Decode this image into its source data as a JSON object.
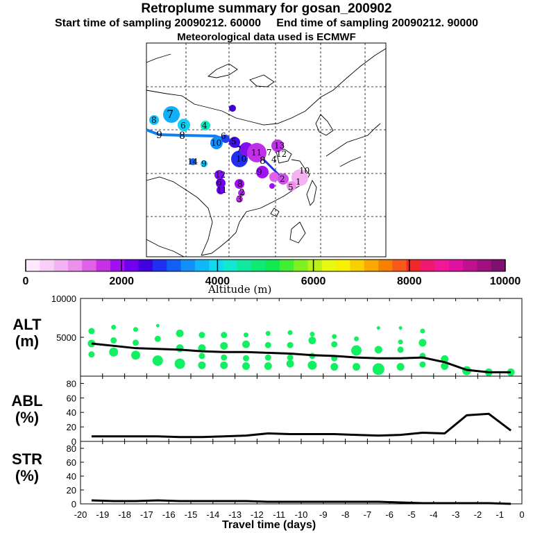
{
  "header": {
    "title": "Retroplume summary for gosan_200902",
    "subtitle_start": "Start time of sampling 20090212. 60000",
    "subtitle_end": "End time of sampling 20090212. 90000",
    "subtitle_met": "Meteorological data used is ECMWF"
  },
  "colorbar": {
    "label": "Altitude (m)",
    "ticks": [
      "0",
      "2000",
      "4000",
      "6000",
      "8000",
      "10000"
    ],
    "colors": [
      "#fde8fd",
      "#f8cff8",
      "#f3b3f3",
      "#ec90ec",
      "#e060e8",
      "#c830e8",
      "#a010f0",
      "#7000ee",
      "#4000e0",
      "#2030f0",
      "#1060f8",
      "#1090f8",
      "#10b8f8",
      "#10d8f0",
      "#10e8d0",
      "#10e8a0",
      "#10e878",
      "#10e850",
      "#40f030",
      "#80f020",
      "#b8f018",
      "#e8f810",
      "#f8f000",
      "#f8d000",
      "#f8a800",
      "#f88000",
      "#f85818",
      "#f02828",
      "#f01870",
      "#f01898",
      "#e010a0",
      "#c01090",
      "#a01080",
      "#801070"
    ]
  },
  "map": {
    "trajectory_labels": [
      "1",
      "2",
      "3",
      "4",
      "5",
      "6",
      "7",
      "8",
      "9",
      "10",
      "11",
      "12",
      "13",
      "14"
    ]
  },
  "chart_data": [
    {
      "type": "scatter",
      "name": "ALT",
      "ylabel": "ALT (m)",
      "ylim": [
        0,
        10000
      ],
      "yticks": [
        5000,
        10000
      ],
      "x": [
        -19.5,
        -18.5,
        -17.5,
        -16.5,
        -15.5,
        -14.5,
        -13.5,
        -12.5,
        -11.5,
        -10.5,
        -9.5,
        -8.5,
        -7.5,
        -6.5,
        -5.5,
        -4.5,
        -3.5,
        -2.5,
        -1.5,
        -0.5
      ],
      "median_line": [
        4200,
        3900,
        3600,
        3500,
        3400,
        3200,
        3100,
        3100,
        3000,
        2900,
        2700,
        2600,
        2400,
        2300,
        2300,
        2400,
        1800,
        800,
        500,
        500
      ],
      "points": [
        {
          "x": -19.5,
          "y": 5800,
          "size": 3
        },
        {
          "x": -19.5,
          "y": 4200,
          "size": 4
        },
        {
          "x": -19.5,
          "y": 2800,
          "size": 3
        },
        {
          "x": -18.5,
          "y": 6300,
          "size": 2
        },
        {
          "x": -18.5,
          "y": 4600,
          "size": 3
        },
        {
          "x": -18.5,
          "y": 3100,
          "size": 5
        },
        {
          "x": -17.5,
          "y": 6000,
          "size": 2
        },
        {
          "x": -17.5,
          "y": 4300,
          "size": 3
        },
        {
          "x": -17.5,
          "y": 2700,
          "size": 5
        },
        {
          "x": -16.5,
          "y": 6500,
          "size": 1
        },
        {
          "x": -16.5,
          "y": 4800,
          "size": 3
        },
        {
          "x": -16.5,
          "y": 2000,
          "size": 6
        },
        {
          "x": -15.5,
          "y": 5500,
          "size": 4
        },
        {
          "x": -15.5,
          "y": 3600,
          "size": 4
        },
        {
          "x": -15.5,
          "y": 1600,
          "size": 6
        },
        {
          "x": -14.5,
          "y": 5300,
          "size": 3
        },
        {
          "x": -14.5,
          "y": 3600,
          "size": 4
        },
        {
          "x": -14.5,
          "y": 2600,
          "size": 3
        },
        {
          "x": -14.5,
          "y": 1400,
          "size": 4
        },
        {
          "x": -13.5,
          "y": 5300,
          "size": 3
        },
        {
          "x": -13.5,
          "y": 3900,
          "size": 4
        },
        {
          "x": -13.5,
          "y": 2400,
          "size": 3
        },
        {
          "x": -13.5,
          "y": 1400,
          "size": 4
        },
        {
          "x": -12.5,
          "y": 5300,
          "size": 2
        },
        {
          "x": -12.5,
          "y": 4100,
          "size": 4
        },
        {
          "x": -12.5,
          "y": 2300,
          "size": 3
        },
        {
          "x": -12.5,
          "y": 1300,
          "size": 4
        },
        {
          "x": -11.5,
          "y": 5500,
          "size": 2
        },
        {
          "x": -11.5,
          "y": 4000,
          "size": 3
        },
        {
          "x": -11.5,
          "y": 2400,
          "size": 3
        },
        {
          "x": -11.5,
          "y": 1300,
          "size": 4
        },
        {
          "x": -10.5,
          "y": 5600,
          "size": 2
        },
        {
          "x": -10.5,
          "y": 4000,
          "size": 3
        },
        {
          "x": -10.5,
          "y": 2400,
          "size": 3
        },
        {
          "x": -10.5,
          "y": 1600,
          "size": 4
        },
        {
          "x": -9.5,
          "y": 5400,
          "size": 2
        },
        {
          "x": -9.5,
          "y": 4600,
          "size": 4
        },
        {
          "x": -9.5,
          "y": 2600,
          "size": 3
        },
        {
          "x": -9.5,
          "y": 1400,
          "size": 5
        },
        {
          "x": -8.5,
          "y": 5100,
          "size": 2
        },
        {
          "x": -8.5,
          "y": 4100,
          "size": 3
        },
        {
          "x": -8.5,
          "y": 2300,
          "size": 3
        },
        {
          "x": -8.5,
          "y": 1200,
          "size": 4
        },
        {
          "x": -7.5,
          "y": 4800,
          "size": 2
        },
        {
          "x": -7.5,
          "y": 3300,
          "size": 6
        },
        {
          "x": -7.5,
          "y": 1200,
          "size": 4
        },
        {
          "x": -6.5,
          "y": 6200,
          "size": 1
        },
        {
          "x": -6.5,
          "y": 3400,
          "size": 4
        },
        {
          "x": -6.5,
          "y": 900,
          "size": 7
        },
        {
          "x": -5.5,
          "y": 6200,
          "size": 1
        },
        {
          "x": -5.5,
          "y": 4400,
          "size": 2
        },
        {
          "x": -5.5,
          "y": 3400,
          "size": 3
        },
        {
          "x": -5.5,
          "y": 1200,
          "size": 4
        },
        {
          "x": -4.5,
          "y": 5800,
          "size": 2
        },
        {
          "x": -4.5,
          "y": 4300,
          "size": 4
        },
        {
          "x": -4.5,
          "y": 2600,
          "size": 3
        },
        {
          "x": -4.5,
          "y": 1500,
          "size": 3
        },
        {
          "x": -3.5,
          "y": 2200,
          "size": 4
        },
        {
          "x": -3.5,
          "y": 1300,
          "size": 4
        },
        {
          "x": -2.5,
          "y": 700,
          "size": 5
        },
        {
          "x": -1.5,
          "y": 500,
          "size": 4
        },
        {
          "x": -0.5,
          "y": 500,
          "size": 4
        }
      ]
    },
    {
      "type": "line",
      "name": "ABL",
      "ylabel": "ABL (%)",
      "ylim": [
        0,
        90
      ],
      "yticks": [
        0,
        20,
        40,
        60,
        80
      ],
      "x": [
        -19.5,
        -18.5,
        -17.5,
        -16.5,
        -15.5,
        -14.5,
        -13.5,
        -12.5,
        -11.5,
        -10.5,
        -9.5,
        -8.5,
        -7.5,
        -6.5,
        -5.5,
        -4.5,
        -3.5,
        -2.5,
        -1.5,
        -0.5
      ],
      "values": [
        7,
        7,
        7,
        7,
        6,
        6,
        7,
        8,
        11,
        10,
        10,
        10,
        9,
        8,
        9,
        12,
        11,
        36,
        38,
        15
      ]
    },
    {
      "type": "line",
      "name": "STR",
      "ylabel": "STR (%)",
      "ylim": [
        0,
        90
      ],
      "yticks": [
        0,
        20,
        40,
        60,
        80
      ],
      "xlabel": "Travel time (days)",
      "xticks": [
        "-20",
        "-19",
        "-18",
        "-17",
        "-16",
        "-15",
        "-14",
        "-13",
        "-12",
        "-11",
        "-10",
        "-9",
        "-8",
        "-7",
        "-6",
        "-5",
        "-4",
        "-3",
        "-2",
        "-1",
        "0"
      ],
      "x": [
        -19.5,
        -18.5,
        -17.5,
        -16.5,
        -15.5,
        -14.5,
        -13.5,
        -12.5,
        -11.5,
        -10.5,
        -9.5,
        -8.5,
        -7.5,
        -6.5,
        -5.5,
        -4.5,
        -3.5,
        -2.5,
        -1.5,
        -0.5
      ],
      "values": [
        5,
        4,
        4,
        5,
        4,
        4,
        4,
        4,
        3,
        3,
        3,
        3,
        3,
        3,
        2,
        1,
        1,
        1,
        1,
        0
      ]
    }
  ],
  "labels": {
    "alt": [
      "ALT",
      "(m)"
    ],
    "abl": [
      "ABL",
      "(%)"
    ],
    "str": [
      "STR",
      "(%)"
    ]
  }
}
